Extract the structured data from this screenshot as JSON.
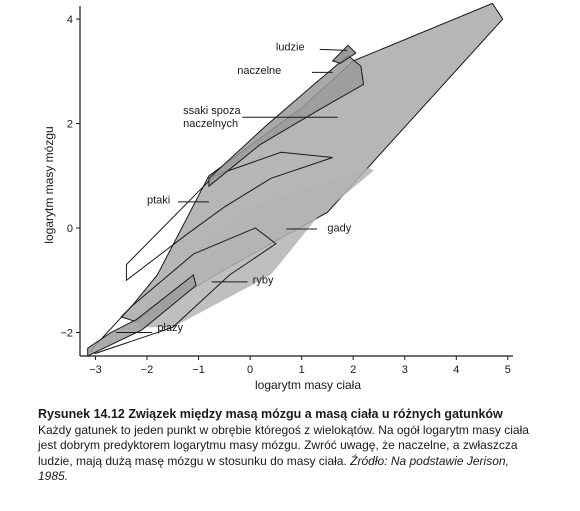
{
  "chart_data": {
    "type": "area",
    "xlabel": "logarytm masy ciała",
    "ylabel": "logarytm masy mózgu",
    "xlim": [
      -3.3,
      5.1
    ],
    "ylim": [
      -2.45,
      4.25
    ],
    "xticks": [
      {
        "value": -3,
        "label": "−3"
      },
      {
        "value": -2,
        "label": "−2"
      },
      {
        "value": -1,
        "label": "−1"
      },
      {
        "value": 0,
        "label": "0"
      },
      {
        "value": 1,
        "label": "1"
      },
      {
        "value": 2,
        "label": "2"
      },
      {
        "value": 3,
        "label": "3"
      },
      {
        "value": 4,
        "label": "4"
      },
      {
        "value": 5,
        "label": "5"
      }
    ],
    "yticks": [
      {
        "value": -2,
        "label": "−2"
      },
      {
        "value": 0,
        "label": "0"
      },
      {
        "value": 2,
        "label": "2"
      },
      {
        "value": 4,
        "label": "4"
      }
    ],
    "grid": false,
    "series": [
      {
        "name": "ssaki spoza naczelnych",
        "fill": "#a9a9a9",
        "stroke": "#1a1a1a",
        "polygon": [
          [
            -2.3,
            -1.5
          ],
          [
            -1.8,
            -0.9
          ],
          [
            -0.8,
            1.0
          ],
          [
            1.0,
            2.3
          ],
          [
            2.0,
            3.2
          ],
          [
            4.7,
            4.3
          ],
          [
            4.9,
            4.0
          ],
          [
            1.5,
            0.3
          ],
          [
            -0.5,
            -0.8
          ],
          [
            -2.2,
            -1.8
          ],
          [
            -2.5,
            -1.7
          ]
        ]
      },
      {
        "name": "ptaki",
        "fill": "none",
        "stroke": "#1a1a1a",
        "polygon": [
          [
            -2.4,
            -0.7
          ],
          [
            -0.7,
            1.0
          ],
          [
            0.6,
            1.45
          ],
          [
            1.6,
            1.35
          ],
          [
            0.4,
            0.95
          ],
          [
            -0.5,
            0.4
          ],
          [
            -1.2,
            -0.1
          ],
          [
            -2.4,
            -1.0
          ]
        ]
      },
      {
        "name": "gady",
        "fill": "#b4b4b4",
        "stroke": "none",
        "polygon": [
          [
            -2.1,
            -1.55
          ],
          [
            -1.0,
            -0.4
          ],
          [
            0.0,
            0.4
          ],
          [
            2.3,
            1.15
          ],
          [
            2.4,
            1.1
          ],
          [
            1.3,
            0.2
          ],
          [
            0.4,
            -0.9
          ],
          [
            -1.5,
            -1.9
          ],
          [
            -2.2,
            -1.9
          ]
        ]
      },
      {
        "name": "ryby",
        "fill": "none",
        "stroke": "#1a1a1a",
        "polygon": [
          [
            -3.1,
            -2.35
          ],
          [
            -2.3,
            -1.5
          ],
          [
            -1.1,
            -0.5
          ],
          [
            0.1,
            0.0
          ],
          [
            0.5,
            -0.3
          ],
          [
            -0.4,
            -0.9
          ],
          [
            -1.5,
            -1.9
          ],
          [
            -3.0,
            -2.4
          ]
        ]
      },
      {
        "name": "płazy",
        "fill": "#9c9c9c",
        "stroke": "#1a1a1a",
        "polygon": [
          [
            -3.15,
            -2.3
          ],
          [
            -2.7,
            -2.0
          ],
          [
            -2.2,
            -1.75
          ],
          [
            -1.1,
            -0.9
          ],
          [
            -1.05,
            -1.1
          ],
          [
            -2.1,
            -1.95
          ],
          [
            -3.15,
            -2.45
          ]
        ]
      },
      {
        "name": "naczelne",
        "fill": "#9a9a9a",
        "stroke": "#1a1a1a",
        "polygon": [
          [
            -0.8,
            0.95
          ],
          [
            0.3,
            1.95
          ],
          [
            1.3,
            2.8
          ],
          [
            1.9,
            3.3
          ],
          [
            2.15,
            3.1
          ],
          [
            2.2,
            2.75
          ],
          [
            1.4,
            2.3
          ],
          [
            0.2,
            1.6
          ],
          [
            -0.8,
            0.8
          ]
        ]
      },
      {
        "name": "ludzie",
        "fill": "#888888",
        "stroke": "#1a1a1a",
        "polygon": [
          [
            1.6,
            3.2
          ],
          [
            1.9,
            3.5
          ],
          [
            2.05,
            3.35
          ],
          [
            1.75,
            3.15
          ]
        ]
      }
    ],
    "region_labels": [
      {
        "text": "ludzie",
        "pos": [
          0.5,
          3.4
        ],
        "anchor": "start",
        "line": [
          [
            1.35,
            3.42
          ],
          [
            1.88,
            3.4
          ]
        ]
      },
      {
        "text": "naczelne",
        "pos": [
          -0.25,
          2.95
        ],
        "anchor": "start",
        "line": [
          [
            1.2,
            2.98
          ],
          [
            1.6,
            2.98
          ]
        ]
      },
      {
        "text": "ssaki spoza",
        "pos": [
          -1.3,
          2.18
        ],
        "anchor": "start",
        "line": null
      },
      {
        "text": "naczelnych",
        "pos": [
          -1.3,
          1.93
        ],
        "anchor": "start",
        "line": [
          [
            -0.15,
            2.12
          ],
          [
            1.7,
            2.12
          ]
        ]
      },
      {
        "text": "ptaki",
        "pos": [
          -2.0,
          0.47
        ],
        "anchor": "start",
        "line": [
          [
            -1.4,
            0.5
          ],
          [
            -0.8,
            0.5
          ]
        ]
      },
      {
        "text": "gady",
        "pos": [
          1.5,
          -0.07
        ],
        "anchor": "start",
        "line": [
          [
            0.7,
            -0.02
          ],
          [
            1.3,
            -0.02
          ]
        ]
      },
      {
        "text": "ryby",
        "pos": [
          0.05,
          -1.06
        ],
        "anchor": "start",
        "line": [
          [
            -0.75,
            -1.03
          ],
          [
            -0.05,
            -1.03
          ]
        ]
      },
      {
        "text": "płazy",
        "pos": [
          -1.8,
          -1.97
        ],
        "anchor": "start",
        "line": [
          [
            -2.6,
            -2.0
          ],
          [
            -1.9,
            -2.0
          ]
        ]
      }
    ]
  },
  "caption": {
    "title": "Rysunek 14.12  Związek między masą mózgu a masą ciała u różnych gatunków",
    "body": "Każdy gatunek to jeden punkt w obrębie któregoś z wielokątów. Na ogół logarytm masy ciała jest dobrym predyktorem logarytmu masy mózgu. Zwróć uwagę, że naczelne, a zwłaszcza ludzie, mają dużą masę mózgu w stosunku do masy ciała.",
    "source": "Źródło: Na podstawie Jerison, 1985."
  }
}
